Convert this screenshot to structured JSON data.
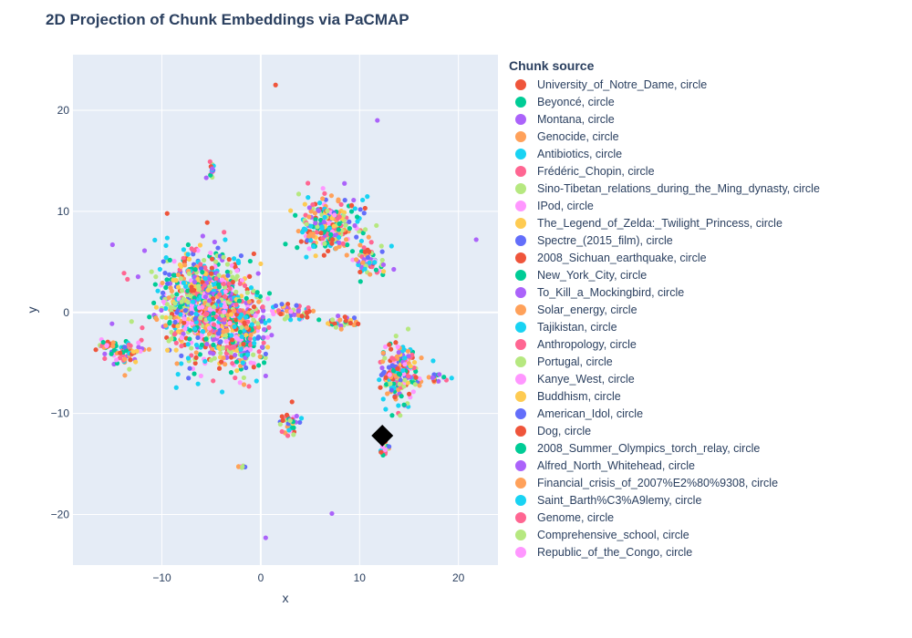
{
  "chart_data": {
    "type": "scatter",
    "title": "2D Projection of Chunk Embeddings via PaCMAP",
    "xlabel": "x",
    "ylabel": "y",
    "xlim": [
      -19,
      24
    ],
    "ylim": [
      -25,
      25.5
    ],
    "x_ticks": [
      "−10",
      "0",
      "10",
      "20"
    ],
    "y_ticks": [
      "−20",
      "−10",
      "0",
      "10",
      "20"
    ],
    "x_tick_values": [
      -10,
      0,
      10,
      20
    ],
    "y_tick_values": [
      -20,
      -10,
      0,
      10,
      20
    ],
    "grid": true,
    "legend_title": "Chunk source",
    "legend_placement": "right",
    "series": [
      {
        "name": "University_of_Notre_Dame, circle",
        "color": "#EF553B"
      },
      {
        "name": "Beyoncé, circle",
        "color": "#00CC96"
      },
      {
        "name": "Montana, circle",
        "color": "#AB63FA"
      },
      {
        "name": "Genocide, circle",
        "color": "#FFA15A"
      },
      {
        "name": "Antibiotics, circle",
        "color": "#19D3F3"
      },
      {
        "name": "Frédéric_Chopin, circle",
        "color": "#FF6692"
      },
      {
        "name": "Sino-Tibetan_relations_during_the_Ming_dynasty, circle",
        "color": "#B6E880"
      },
      {
        "name": "IPod, circle",
        "color": "#FF97FF"
      },
      {
        "name": "The_Legend_of_Zelda:_Twilight_Princess, circle",
        "color": "#FECB52"
      },
      {
        "name": "Spectre_(2015_film), circle",
        "color": "#636EFA"
      },
      {
        "name": "2008_Sichuan_earthquake, circle",
        "color": "#EF553B"
      },
      {
        "name": "New_York_City, circle",
        "color": "#00CC96"
      },
      {
        "name": "To_Kill_a_Mockingbird, circle",
        "color": "#AB63FA"
      },
      {
        "name": "Solar_energy, circle",
        "color": "#FFA15A"
      },
      {
        "name": "Tajikistan, circle",
        "color": "#19D3F3"
      },
      {
        "name": "Anthropology, circle",
        "color": "#FF6692"
      },
      {
        "name": "Portugal, circle",
        "color": "#B6E880"
      },
      {
        "name": "Kanye_West, circle",
        "color": "#FF97FF"
      },
      {
        "name": "Buddhism, circle",
        "color": "#FECB52"
      },
      {
        "name": "American_Idol, circle",
        "color": "#636EFA"
      },
      {
        "name": "Dog, circle",
        "color": "#EF553B"
      },
      {
        "name": "2008_Summer_Olympics_torch_relay, circle",
        "color": "#00CC96"
      },
      {
        "name": "Alfred_North_Whitehead, circle",
        "color": "#AB63FA"
      },
      {
        "name": "Financial_crisis_of_2007%E2%80%9308, circle",
        "color": "#FFA15A"
      },
      {
        "name": "Saint_Barth%C3%A9lemy, circle",
        "color": "#19D3F3"
      },
      {
        "name": "Genome, circle",
        "color": "#FF6692"
      },
      {
        "name": "Comprehensive_school, circle",
        "color": "#B6E880"
      },
      {
        "name": "Republic_of_the_Congo, circle",
        "color": "#FF97FF"
      }
    ],
    "clusters": [
      {
        "center": [
          -6,
          1
        ],
        "spread": [
          4.5,
          5
        ],
        "count": 900
      },
      {
        "center": [
          -2,
          -2
        ],
        "spread": [
          3,
          4
        ],
        "count": 300
      },
      {
        "center": [
          7,
          8.5
        ],
        "spread": [
          3,
          3
        ],
        "count": 260
      },
      {
        "center": [
          11,
          5
        ],
        "spread": [
          1.8,
          1.8
        ],
        "count": 70
      },
      {
        "center": [
          14,
          -6
        ],
        "spread": [
          1.8,
          3
        ],
        "count": 200
      },
      {
        "center": [
          -13.5,
          -4
        ],
        "spread": [
          2.5,
          1.5
        ],
        "count": 60
      },
      {
        "center": [
          3,
          -11
        ],
        "spread": [
          0.9,
          1.2
        ],
        "count": 45
      },
      {
        "center": [
          -5,
          14
        ],
        "spread": [
          0.3,
          0.8
        ],
        "count": 15
      },
      {
        "center": [
          3.5,
          0
        ],
        "spread": [
          2,
          0.7
        ],
        "count": 50
      },
      {
        "center": [
          8,
          -1
        ],
        "spread": [
          2,
          0.6
        ],
        "count": 30
      },
      {
        "center": [
          12.5,
          -13.5
        ],
        "spread": [
          0.6,
          0.8
        ],
        "count": 20
      },
      {
        "center": [
          -2,
          -15.3
        ],
        "spread": [
          0.4,
          0.15
        ],
        "count": 8
      },
      {
        "center": [
          18,
          -6.5
        ],
        "spread": [
          1.5,
          0.5
        ],
        "count": 15
      },
      {
        "center": [
          -15.5,
          -3.2
        ],
        "spread": [
          0.8,
          0.4
        ],
        "count": 18
      }
    ],
    "outliers": [
      {
        "x": 1.5,
        "y": 22.5,
        "color": "#EF553B"
      },
      {
        "x": 11.8,
        "y": 19,
        "color": "#AB63FA"
      },
      {
        "x": -15,
        "y": 6.7,
        "color": "#AB63FA"
      },
      {
        "x": 21.8,
        "y": 7.2,
        "color": "#AB63FA"
      },
      {
        "x": 7.2,
        "y": -19.9,
        "color": "#AB63FA"
      },
      {
        "x": 0.5,
        "y": -22.3,
        "color": "#AB63FA"
      }
    ],
    "highlight": {
      "x": 12.3,
      "y": -12.2,
      "shape": "diamond",
      "color": "#000000"
    }
  }
}
